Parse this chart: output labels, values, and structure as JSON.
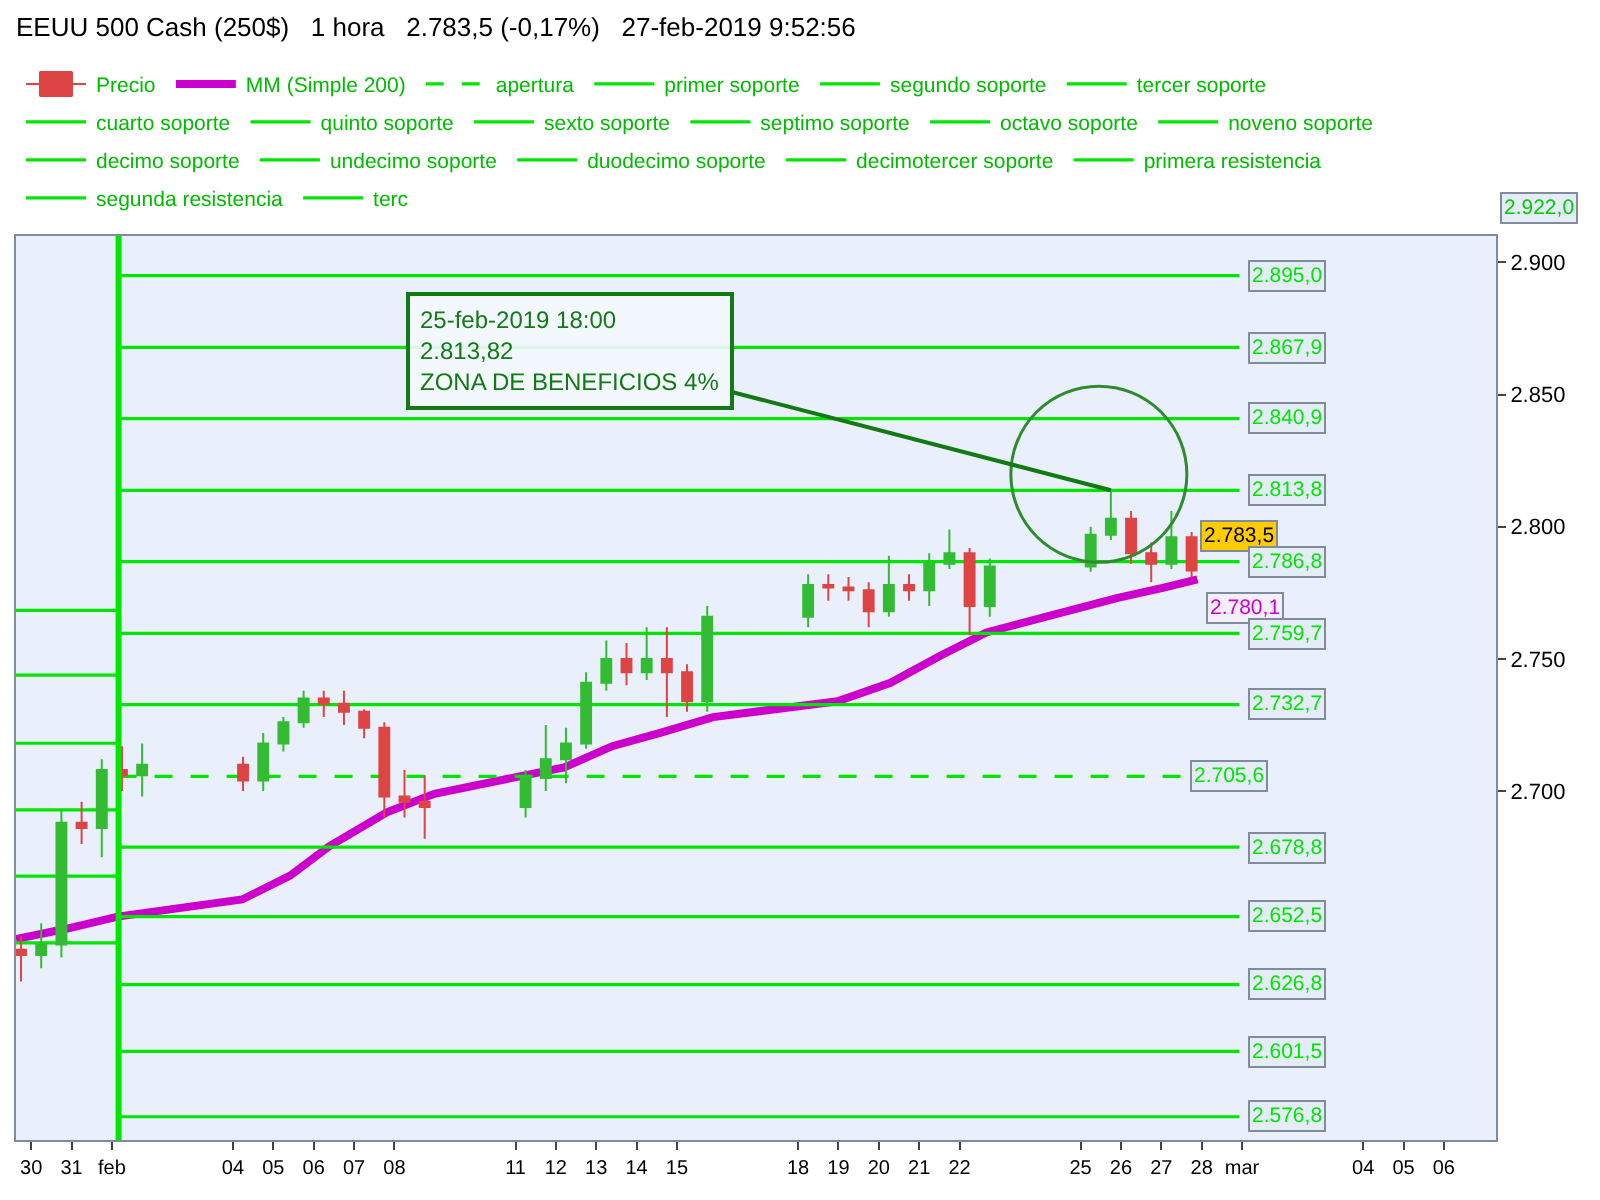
{
  "chart_data": {
    "type": "candlestick",
    "title": "EEUU 500 Cash (250$)   1 hora   2.783,5 (-0,17%)   27-feb-2019 9:52:56",
    "xlim": [
      "2019-01-29T15:00",
      "2019-03-07T07:00"
    ],
    "xticks": [
      {
        "value": "2019-01-30",
        "label": "30"
      },
      {
        "value": "2019-01-31",
        "label": "31"
      },
      {
        "value": "2019-02-01",
        "label": "feb"
      },
      {
        "value": "2019-02-04",
        "label": "04"
      },
      {
        "value": "2019-02-05",
        "label": "05"
      },
      {
        "value": "2019-02-06",
        "label": "06"
      },
      {
        "value": "2019-02-07",
        "label": "07"
      },
      {
        "value": "2019-02-08",
        "label": "08"
      },
      {
        "value": "2019-02-11",
        "label": "11"
      },
      {
        "value": "2019-02-12",
        "label": "12"
      },
      {
        "value": "2019-02-13",
        "label": "13"
      },
      {
        "value": "2019-02-14",
        "label": "14"
      },
      {
        "value": "2019-02-15",
        "label": "15"
      },
      {
        "value": "2019-02-18",
        "label": "18"
      },
      {
        "value": "2019-02-19",
        "label": "19"
      },
      {
        "value": "2019-02-20",
        "label": "20"
      },
      {
        "value": "2019-02-21",
        "label": "21"
      },
      {
        "value": "2019-02-22",
        "label": "22"
      },
      {
        "value": "2019-02-25",
        "label": "25"
      },
      {
        "value": "2019-02-26",
        "label": "26"
      },
      {
        "value": "2019-02-27",
        "label": "27"
      },
      {
        "value": "2019-02-28",
        "label": "28"
      },
      {
        "value": "2019-03-01",
        "label": "mar"
      },
      {
        "value": "2019-03-04",
        "label": "04"
      },
      {
        "value": "2019-03-05",
        "label": "05"
      },
      {
        "value": "2019-03-06",
        "label": "06"
      }
    ],
    "ylim": [
      2568,
      2910
    ],
    "yticks": [
      {
        "value": 2700,
        "label": "2.700"
      },
      {
        "value": 2750,
        "label": "2.750"
      },
      {
        "value": 2800,
        "label": "2.800"
      },
      {
        "value": 2850,
        "label": "2.850"
      },
      {
        "value": 2900,
        "label": "2.900"
      }
    ],
    "grid": false,
    "legend": "top",
    "series": [
      {
        "name": "Precio",
        "colors": [
          "#dd4444",
          "#33bb33",
          "#33bb33",
          "#dd4444",
          "#33bb33",
          "#dd4444",
          "#33bb33",
          "#dd4444",
          "#33bb33",
          "#33bb33",
          "#33bb33",
          "#dd4444",
          "#dd4444",
          "#dd4444",
          "#dd4444",
          "#dd4444",
          "#dd4444",
          "#33bb33",
          "#33bb33",
          "#33bb33",
          "#33bb33",
          "#33bb33",
          "#dd4444",
          "#33bb33",
          "#dd4444",
          "#dd4444",
          "#33bb33",
          "#33bb33",
          "#dd4444",
          "#dd4444",
          "#dd4444",
          "#33bb33",
          "#dd4444",
          "#33bb33",
          "#33bb33",
          "#dd4444",
          "#33bb33",
          "#33bb33",
          "#33bb33",
          "#dd4444",
          "#dd4444",
          "#33bb33",
          "#dd4444"
        ],
        "x": [
          "2019-01-29T18:00",
          "2019-01-30T06:00",
          "2019-01-30T18:00",
          "2019-01-31T06:00",
          "2019-01-31T18:00",
          "2019-02-01T06:00",
          "2019-02-01T18:00",
          "2019-02-04T06:00",
          "2019-02-04T18:00",
          "2019-02-05T06:00",
          "2019-02-05T18:00",
          "2019-02-06T06:00",
          "2019-02-06T18:00",
          "2019-02-07T06:00",
          "2019-02-07T18:00",
          "2019-02-08T06:00",
          "2019-02-08T18:00",
          "2019-02-11T06:00",
          "2019-02-11T18:00",
          "2019-02-12T06:00",
          "2019-02-12T18:00",
          "2019-02-13T06:00",
          "2019-02-13T18:00",
          "2019-02-14T06:00",
          "2019-02-14T18:00",
          "2019-02-15T06:00",
          "2019-02-15T18:00",
          "2019-02-18T06:00",
          "2019-02-18T18:00",
          "2019-02-19T06:00",
          "2019-02-19T18:00",
          "2019-02-20T06:00",
          "2019-02-20T18:00",
          "2019-02-21T06:00",
          "2019-02-21T18:00",
          "2019-02-22T06:00",
          "2019-02-22T18:00",
          "2019-02-25T06:00",
          "2019-02-25T18:00",
          "2019-02-26T06:00",
          "2019-02-26T18:00",
          "2019-02-27T06:00",
          "2019-02-27T18:00"
        ],
        "ohlc": [
          [
            2640,
            2645,
            2628,
            2638
          ],
          [
            2638,
            2650,
            2633,
            2642
          ],
          [
            2642,
            2693,
            2637,
            2688
          ],
          [
            2688,
            2696,
            2680,
            2686
          ],
          [
            2686,
            2712,
            2675,
            2708
          ],
          [
            2708,
            2717,
            2700,
            2706
          ],
          [
            2706,
            2718,
            2698,
            2710
          ],
          [
            2710,
            2713,
            2700,
            2704
          ],
          [
            2704,
            2722,
            2700,
            2718
          ],
          [
            2718,
            2728,
            2715,
            2726
          ],
          [
            2726,
            2738,
            2724,
            2735
          ],
          [
            2735,
            2738,
            2728,
            2733
          ],
          [
            2733,
            2738,
            2725,
            2730
          ],
          [
            2730,
            2731,
            2720,
            2724
          ],
          [
            2724,
            2726,
            2690,
            2698
          ],
          [
            2698,
            2708,
            2690,
            2696
          ],
          [
            2696,
            2706,
            2682,
            2694
          ],
          [
            2694,
            2708,
            2690,
            2705
          ],
          [
            2705,
            2725,
            2700,
            2712
          ],
          [
            2712,
            2724,
            2703,
            2718
          ],
          [
            2718,
            2745,
            2716,
            2741
          ],
          [
            2741,
            2757,
            2738,
            2750
          ],
          [
            2750,
            2756,
            2740,
            2745
          ],
          [
            2745,
            2762,
            2742,
            2750
          ],
          [
            2750,
            2762,
            2728,
            2745
          ],
          [
            2745,
            2748,
            2730,
            2734
          ],
          [
            2734,
            2770,
            2730,
            2766
          ],
          [
            2766,
            2782,
            2762,
            2778
          ],
          [
            2778,
            2782,
            2772,
            2777
          ],
          [
            2777,
            2781,
            2772,
            2776
          ],
          [
            2776,
            2779,
            2762,
            2768
          ],
          [
            2768,
            2789,
            2766,
            2778
          ],
          [
            2778,
            2782,
            2772,
            2776
          ],
          [
            2776,
            2790,
            2770,
            2786
          ],
          [
            2786,
            2799,
            2784,
            2790
          ],
          [
            2790,
            2792,
            2759,
            2770
          ],
          [
            2770,
            2788,
            2766,
            2785
          ],
          [
            2785,
            2800,
            2783,
            2797
          ],
          [
            2797,
            2813.82,
            2795,
            2803
          ],
          [
            2803,
            2806,
            2786,
            2790
          ],
          [
            2790,
            2794,
            2779,
            2786
          ],
          [
            2786,
            2806,
            2784,
            2796
          ],
          [
            2796,
            2798,
            2781,
            2783.5
          ]
        ],
        "value_labels": [
          null,
          null,
          null,
          null,
          null,
          null,
          null,
          null,
          null,
          null,
          null,
          null,
          null,
          null,
          null,
          null,
          null,
          null,
          null,
          null,
          null,
          null,
          null,
          null,
          null,
          null,
          null,
          null,
          null,
          null,
          null,
          null,
          null,
          null,
          null,
          null,
          null,
          null,
          null,
          null,
          null,
          null,
          "2.783,5"
        ]
      },
      {
        "name": "MM (Simple 200)",
        "type": "line",
        "color": "#cc00cc",
        "x": [
          "2019-01-29T15:00",
          "2019-01-30T21:30",
          "2019-02-01T03:30",
          "2019-02-04T05:30",
          "2019-02-05T10:00",
          "2019-02-06T09:00",
          "2019-02-07T19:30",
          "2019-02-08T23:45",
          "2019-02-12T05:00",
          "2019-02-13T09:30",
          "2019-02-14T14:00",
          "2019-02-15T21:30",
          "2019-02-18T23:30",
          "2019-02-20T07:00",
          "2019-02-21T12:00",
          "2019-02-22T16:00",
          "2019-02-25T21:30",
          "2019-02-27T01:30",
          "2019-02-27T21:30"
        ],
        "values": [
          2644,
          2648,
          2652.5,
          2659,
          2668,
          2679,
          2692,
          2699,
          2709,
          2717,
          2722,
          2728,
          2734,
          2741,
          2751,
          2760,
          2773,
          2777,
          2780.1
        ],
        "value_labels": [
          null,
          null,
          null,
          null,
          null,
          null,
          null,
          null,
          null,
          null,
          null,
          null,
          null,
          null,
          null,
          null,
          null,
          null,
          "2.780,1"
        ]
      },
      {
        "name": "apertura",
        "type": "line",
        "line_style": "dashed",
        "color": "#00e600",
        "x": [
          "2019-02-01T04:00",
          "2019-02-27T12:00"
        ],
        "values": [
          2705.6,
          2705.6
        ],
        "value_labels": [
          null,
          "2.705,6"
        ]
      },
      {
        "name": "primer soporte",
        "type": "line",
        "color": "#00e600",
        "x": [
          "2019-02-01T04:00",
          "2019-02-28T22:30"
        ],
        "values": [
          2678.8,
          2678.8
        ],
        "value_labels": [
          null,
          "2.678,8"
        ]
      },
      {
        "name": "segundo soporte",
        "type": "line",
        "color": "#00e600",
        "x": [
          "2019-02-01T04:00",
          "2019-02-28T22:30"
        ],
        "values": [
          2652.5,
          2652.5
        ],
        "value_labels": [
          null,
          "2.652,5"
        ]
      },
      {
        "name": "tercer soporte",
        "type": "line",
        "color": "#00e600",
        "x": [
          "2019-02-01T04:00",
          "2019-02-28T22:30"
        ],
        "values": [
          2626.8,
          2626.8
        ],
        "value_labels": [
          null,
          "2.626,8"
        ]
      },
      {
        "name": "cuarto soporte",
        "type": "line",
        "color": "#00e600",
        "x": [
          "2019-02-01T04:00",
          "2019-02-28T22:30"
        ],
        "values": [
          2601.5,
          2601.5
        ],
        "value_labels": [
          null,
          "2.601,5"
        ]
      },
      {
        "name": "quinto soporte",
        "type": "line",
        "color": "#00e600",
        "x": [
          "2019-02-01T04:00",
          "2019-02-28T22:30"
        ],
        "values": [
          2576.8,
          2576.8
        ],
        "value_labels": [
          null,
          "2.576,8"
        ]
      },
      {
        "name": "sexto soporte",
        "type": "line",
        "color": "#00e600"
      },
      {
        "name": "septimo soporte",
        "type": "line",
        "color": "#00e600"
      },
      {
        "name": "octavo soporte",
        "type": "line",
        "color": "#00e600"
      },
      {
        "name": "noveno soporte",
        "type": "line",
        "color": "#00e600"
      },
      {
        "name": "decimo soporte",
        "type": "line",
        "color": "#00e600"
      },
      {
        "name": "undecimo soporte",
        "type": "line",
        "color": "#00e600"
      },
      {
        "name": "duodecimo soporte",
        "type": "line",
        "color": "#00e600"
      },
      {
        "name": "decimotercer soporte",
        "type": "line",
        "color": "#00e600"
      },
      {
        "name": "primera resistencia",
        "type": "line",
        "color": "#00e600",
        "x": [
          "2019-02-01T04:00",
          "2019-02-28T22:30"
        ],
        "values": [
          2732.7,
          2732.7
        ],
        "value_labels": [
          null,
          "2.732,7"
        ]
      },
      {
        "name": "segunda resistencia",
        "type": "line",
        "color": "#00e600",
        "x": [
          "2019-02-01T04:00",
          "2019-02-28T22:30"
        ],
        "values": [
          2759.7,
          2759.7
        ],
        "value_labels": [
          null,
          "2.759,7"
        ]
      },
      {
        "name": "terc",
        "type": "line",
        "color": "#00e600",
        "x": [
          "2019-02-01T04:00",
          "2019-02-28T22:30"
        ],
        "values": [
          2786.8,
          2786.8
        ],
        "value_labels": [
          null,
          "2.786,8"
        ]
      },
      {
        "type": "line",
        "color": "#00e600",
        "x": [
          "2019-02-01T04:00",
          "2019-02-28T22:30"
        ],
        "values": [
          2813.8,
          2813.8
        ],
        "value_labels": [
          null,
          "2.813,8"
        ]
      },
      {
        "type": "line",
        "color": "#00e600",
        "x": [
          "2019-02-01T04:00",
          "2019-02-28T22:30"
        ],
        "values": [
          2840.9,
          2840.9
        ],
        "value_labels": [
          null,
          "2.840,9"
        ]
      },
      {
        "type": "line",
        "color": "#00e600",
        "x": [
          "2019-02-01T04:00",
          "2019-02-28T22:30"
        ],
        "values": [
          2867.9,
          2867.9
        ],
        "value_labels": [
          null,
          "2.867,9"
        ]
      },
      {
        "type": "line",
        "color": "#00e600",
        "x": [
          "2019-02-01T04:00",
          "2019-02-28T22:30"
        ],
        "values": [
          2895.0,
          2895.0
        ],
        "value_labels": [
          null,
          "2.895,0"
        ]
      },
      {
        "type": "line",
        "color": "#00e600",
        "x": [
          "2019-01-29T15:00",
          "2019-02-01T04:00"
        ],
        "values": [
          2768.4,
          2768.4
        ]
      },
      {
        "type": "line",
        "color": "#00e600",
        "x": [
          "2019-01-29T15:00",
          "2019-02-01T04:00"
        ],
        "values": [
          2743.9,
          2743.9
        ]
      },
      {
        "type": "line",
        "color": "#00e600",
        "x": [
          "2019-01-29T15:00",
          "2019-02-01T04:00"
        ],
        "values": [
          2718.1,
          2718.1
        ]
      },
      {
        "type": "line",
        "color": "#00e600",
        "x": [
          "2019-01-29T15:00",
          "2019-02-01T04:00"
        ],
        "values": [
          2692.9,
          2692.9
        ]
      },
      {
        "type": "line",
        "color": "#00e600",
        "x": [
          "2019-01-29T15:00",
          "2019-02-01T04:00"
        ],
        "values": [
          2667.8,
          2667.8
        ]
      },
      {
        "type": "line",
        "color": "#00e600",
        "x": [
          "2019-01-29T15:00",
          "2019-02-01T04:00"
        ],
        "values": [
          2642.6,
          2642.6
        ]
      }
    ],
    "ref_lines": [
      {
        "axis": "x",
        "value": "2019-02-01T04:00",
        "color": "#00e600"
      }
    ],
    "annotations": [
      {
        "text": "25-feb-2019 18:00\n2.813,82\nZONA DE BENEFICIOS 4%",
        "x": "2019-02-25T18:00",
        "y": 2813.82
      },
      "2.922,0"
    ]
  }
}
